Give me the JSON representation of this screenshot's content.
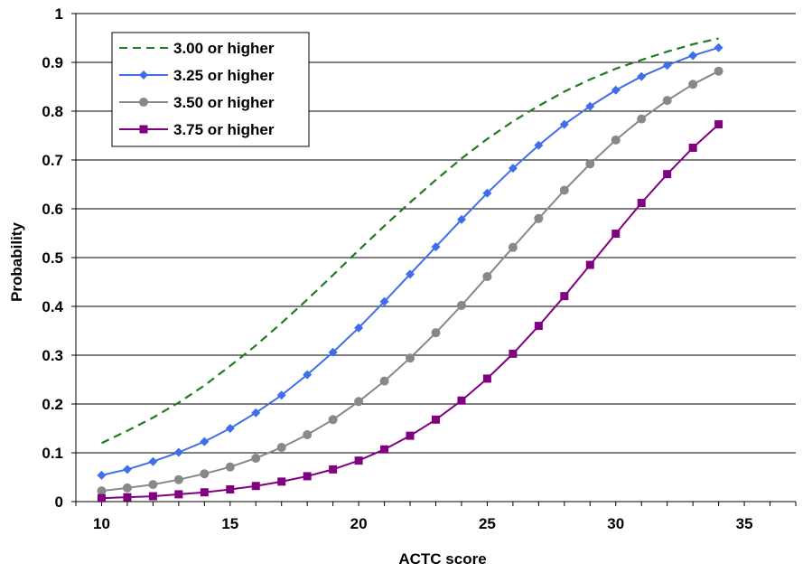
{
  "chart_data": {
    "type": "line",
    "xlabel": "ACTC score",
    "ylabel": "Probability",
    "xlim": [
      9,
      37
    ],
    "ylim": [
      0,
      1
    ],
    "x_ticks": [
      10,
      15,
      20,
      25,
      30,
      35
    ],
    "y_ticks": [
      0,
      0.1,
      0.2,
      0.3,
      0.4,
      0.5,
      0.6,
      0.7,
      0.8,
      0.9,
      1
    ],
    "y_tick_labels": [
      "0",
      "0.1",
      "0.2",
      "0.3",
      "0.4",
      "0.5",
      "0.6",
      "0.7",
      "0.8",
      "0.9",
      "1"
    ],
    "grid": "horizontal",
    "legend_position": "top-left",
    "series": [
      {
        "name": "3.00 or higher",
        "color": "#1e7b1e",
        "style": "dashed",
        "marker": "none",
        "x": [
          10,
          11,
          12,
          13,
          14,
          15,
          16,
          17,
          18,
          19,
          20,
          21,
          22,
          23,
          24,
          25,
          26,
          27,
          28,
          29,
          30,
          31,
          32,
          33,
          34
        ],
        "values": [
          0.12,
          0.145,
          0.172,
          0.203,
          0.238,
          0.278,
          0.32,
          0.366,
          0.414,
          0.464,
          0.515,
          0.565,
          0.613,
          0.659,
          0.703,
          0.743,
          0.779,
          0.811,
          0.84,
          0.865,
          0.887,
          0.905,
          0.922,
          0.937,
          0.949
        ]
      },
      {
        "name": "3.25 or higher",
        "color": "#3f6fe8",
        "style": "solid",
        "marker": "diamond",
        "x": [
          10,
          11,
          12,
          13,
          14,
          15,
          16,
          17,
          18,
          19,
          20,
          21,
          22,
          23,
          24,
          25,
          26,
          27,
          28,
          29,
          30,
          31,
          32,
          33,
          34
        ],
        "values": [
          0.054,
          0.066,
          0.082,
          0.101,
          0.123,
          0.15,
          0.182,
          0.218,
          0.26,
          0.306,
          0.356,
          0.41,
          0.466,
          0.522,
          0.578,
          0.632,
          0.683,
          0.73,
          0.773,
          0.81,
          0.843,
          0.871,
          0.894,
          0.914,
          0.93
        ]
      },
      {
        "name": "3.50 or higher",
        "color": "#888888",
        "style": "solid",
        "marker": "circle",
        "x": [
          10,
          11,
          12,
          13,
          14,
          15,
          16,
          17,
          18,
          19,
          20,
          21,
          22,
          23,
          24,
          25,
          26,
          27,
          28,
          29,
          30,
          31,
          32,
          33,
          34
        ],
        "values": [
          0.022,
          0.028,
          0.035,
          0.045,
          0.057,
          0.071,
          0.089,
          0.111,
          0.137,
          0.168,
          0.205,
          0.247,
          0.294,
          0.346,
          0.402,
          0.461,
          0.521,
          0.58,
          0.638,
          0.692,
          0.741,
          0.784,
          0.822,
          0.855,
          0.882
        ]
      },
      {
        "name": "3.75 or higher",
        "color": "#800080",
        "style": "solid",
        "marker": "square",
        "x": [
          10,
          11,
          12,
          13,
          14,
          15,
          16,
          17,
          18,
          19,
          20,
          21,
          22,
          23,
          24,
          25,
          26,
          27,
          28,
          29,
          30,
          31,
          32,
          33,
          34
        ],
        "values": [
          0.007,
          0.009,
          0.011,
          0.015,
          0.019,
          0.025,
          0.032,
          0.041,
          0.052,
          0.066,
          0.084,
          0.107,
          0.135,
          0.168,
          0.207,
          0.252,
          0.303,
          0.36,
          0.421,
          0.485,
          0.549,
          0.612,
          0.671,
          0.725,
          0.773
        ]
      }
    ]
  }
}
